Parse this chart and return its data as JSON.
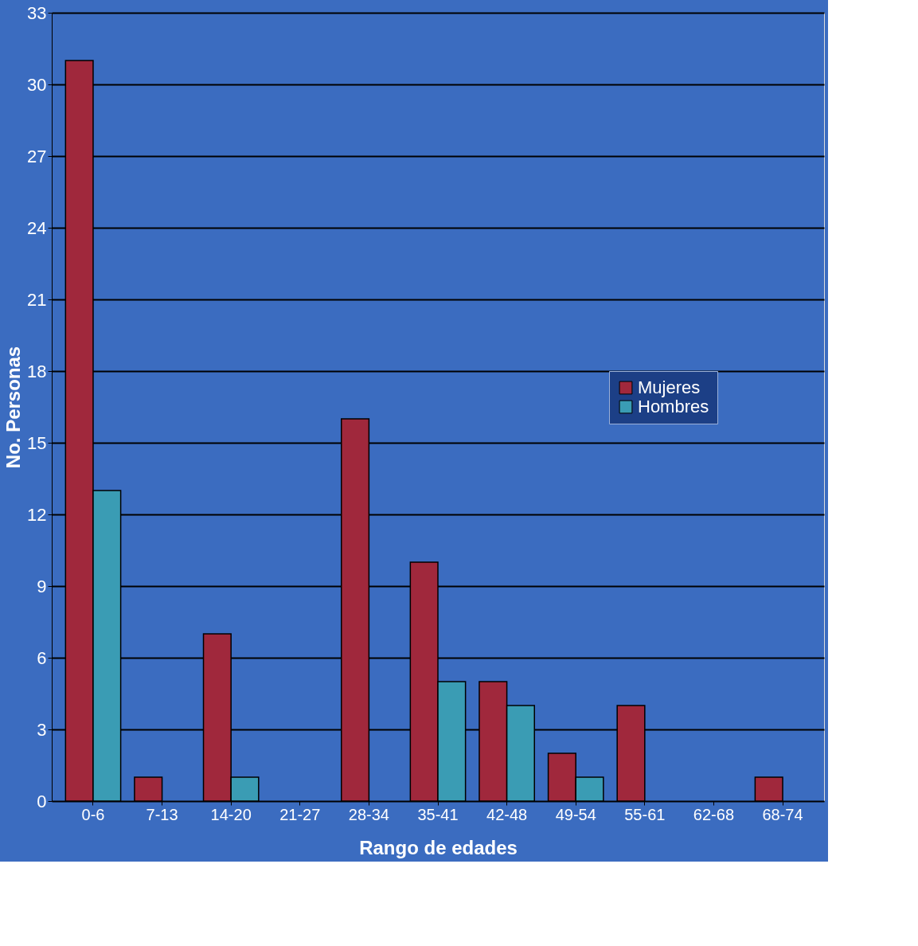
{
  "chart_data": {
    "type": "bar",
    "xlabel": "Rango de edades",
    "ylabel": "No. Personas",
    "categories": [
      "0-6",
      "7-13",
      "14-20",
      "21-27",
      "28-34",
      "35-41",
      "42-48",
      "49-54",
      "55-61",
      "62-68",
      "68-74"
    ],
    "series": [
      {
        "name": "Mujeres",
        "color": "#a0283c",
        "values": [
          31,
          1,
          7,
          0,
          16,
          10,
          5,
          2,
          4,
          0,
          1
        ]
      },
      {
        "name": "Hombres",
        "color": "#3a9cb4",
        "values": [
          13,
          0,
          1,
          0,
          0,
          5,
          4,
          1,
          0,
          0,
          0
        ]
      }
    ],
    "ylim": [
      0,
      33
    ],
    "yticks": [
      0,
      3,
      6,
      9,
      12,
      15,
      18,
      21,
      24,
      27,
      30,
      33
    ],
    "grid": "y",
    "legend": "right"
  }
}
